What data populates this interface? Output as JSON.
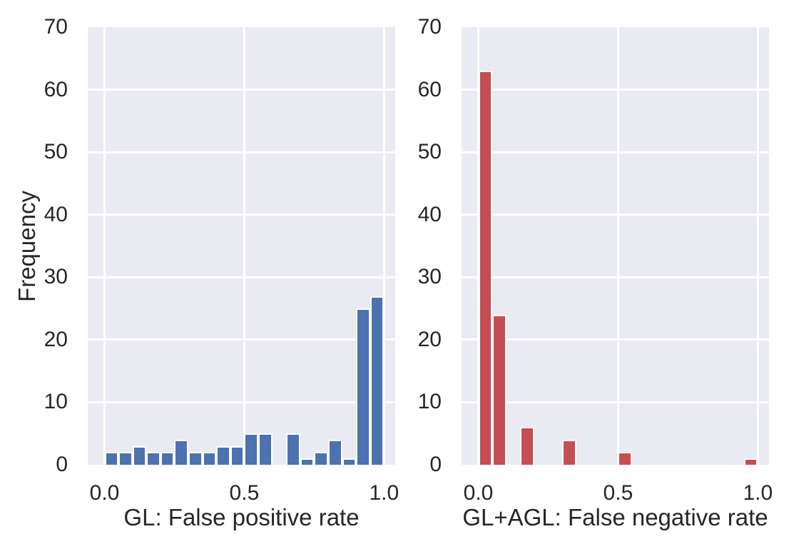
{
  "figure": {
    "background": "#ffffff",
    "plot_background": "#eaeaf2",
    "grid_color": "#ffffff",
    "text_color": "#262626"
  },
  "chart_data": [
    {
      "type": "bar",
      "subtype": "histogram",
      "title": "",
      "xlabel": "GL: False positive rate",
      "ylabel": "Frequency",
      "bar_color": "#4c72b0",
      "bin_start": 0.0,
      "bin_width": 0.05,
      "counts": [
        2,
        2,
        3,
        2,
        2,
        4,
        2,
        2,
        3,
        3,
        5,
        5,
        0,
        5,
        1,
        2,
        4,
        1,
        25,
        27
      ],
      "xticks": [
        0.0,
        0.5,
        1.0
      ],
      "xtick_labels": [
        "0.0",
        "0.5",
        "1.0"
      ],
      "yticks": [
        0,
        10,
        20,
        30,
        40,
        50,
        60,
        70
      ],
      "xlim": [
        -0.06,
        1.04
      ],
      "ylim": [
        0,
        70
      ],
      "grid": "on",
      "legend": "none"
    },
    {
      "type": "bar",
      "subtype": "histogram",
      "title": "",
      "xlabel": "GL+AGL: False negative rate",
      "ylabel": "",
      "bar_color": "#c44e52",
      "bin_start": 0.0,
      "bin_width": 0.05,
      "counts": [
        63,
        24,
        0,
        6,
        0,
        0,
        4,
        0,
        0,
        0,
        2,
        0,
        0,
        0,
        0,
        0,
        0,
        0,
        0,
        1
      ],
      "xticks": [
        0.0,
        0.5,
        1.0
      ],
      "xtick_labels": [
        "0.0",
        "0.5",
        "1.0"
      ],
      "yticks": [
        0,
        10,
        20,
        30,
        40,
        50,
        60,
        70
      ],
      "xlim": [
        -0.06,
        1.04
      ],
      "ylim": [
        0,
        70
      ],
      "grid": "on",
      "legend": "none"
    }
  ]
}
